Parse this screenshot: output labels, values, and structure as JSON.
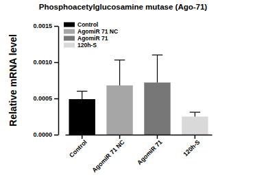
{
  "chart_data": {
    "type": "bar",
    "title": "Phosphoacetylglucosamine mutase (Ago-71)",
    "y_label": "Relative mRNA level",
    "categories": [
      "Control",
      "AgomiR 71 NC",
      "AgomiR 71",
      "120h-S"
    ],
    "values": [
      0.00049,
      0.00068,
      0.00072,
      0.00025
    ],
    "errors": [
      0.00011,
      0.00035,
      0.00038,
      6e-05
    ],
    "colors": [
      "#000000",
      "#a6a6a6",
      "#777777",
      "#d9d9d9"
    ],
    "ylim": [
      0,
      0.0015
    ],
    "yticks": [
      {
        "value": 0,
        "label": "0.0000"
      },
      {
        "value": 0.0005,
        "label": "0.0005"
      },
      {
        "value": 0.001,
        "label": "0.0010"
      },
      {
        "value": 0.0015,
        "label": "0.0015"
      }
    ],
    "legend": "top-left",
    "grid": false
  }
}
